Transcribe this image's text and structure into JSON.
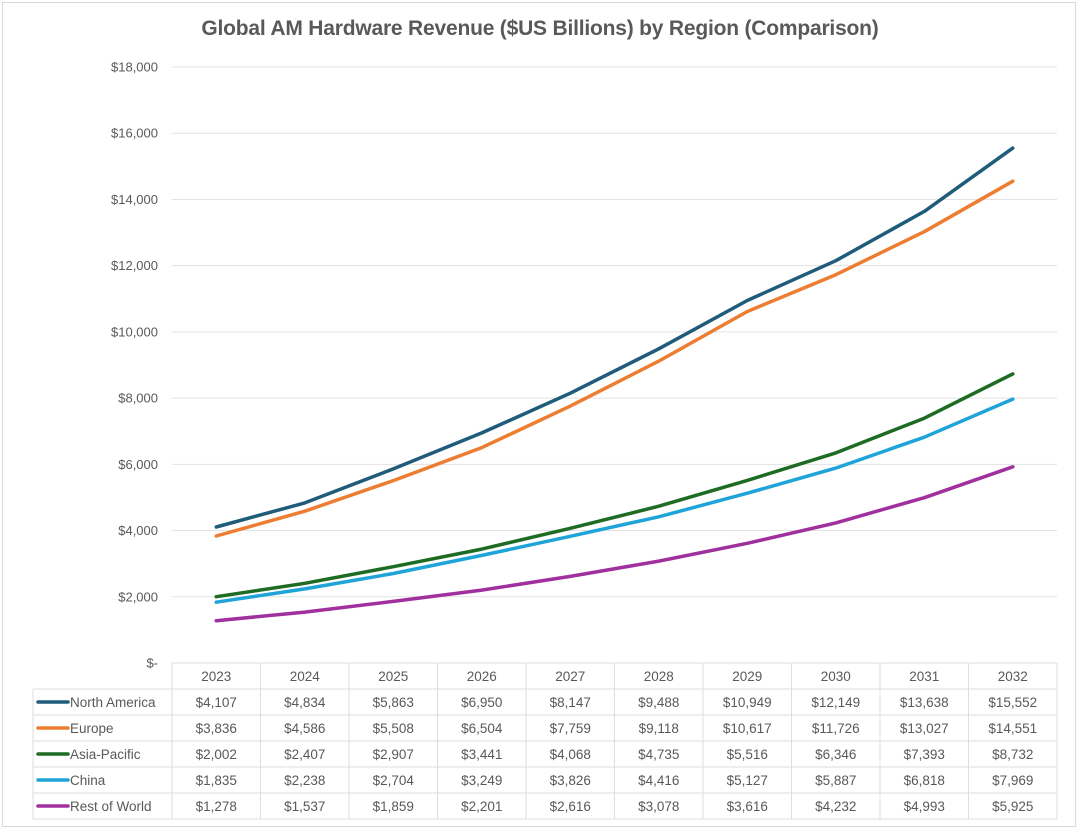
{
  "chart_data": {
    "type": "line",
    "title": "Global  AM Hardware Revenue ($US Billions) by Region (Comparison)",
    "xlabel": "",
    "ylabel": "",
    "ylim": [
      0,
      18000
    ],
    "yticks": [
      0,
      2000,
      4000,
      6000,
      8000,
      10000,
      12000,
      14000,
      16000,
      18000
    ],
    "ytick_labels": [
      "$-",
      "$2,000",
      "$4,000",
      "$6,000",
      "$8,000",
      "$10,000",
      "$12,000",
      "$14,000",
      "$16,000",
      "$18,000"
    ],
    "grid": true,
    "legend": "data-table",
    "categories": [
      "2023",
      "2024",
      "2025",
      "2026",
      "2027",
      "2028",
      "2029",
      "2030",
      "2031",
      "2032"
    ],
    "series": [
      {
        "name": "North America",
        "color": "#1f5c7a",
        "values": [
          4107,
          4834,
          5863,
          6950,
          8147,
          9488,
          10949,
          12149,
          13638,
          15552
        ],
        "labels": [
          "$4,107",
          "$4,834",
          "$5,863",
          "$6,950",
          "$8,147",
          "$9,488",
          "$10,949",
          "$12,149",
          "$13,638",
          "$15,552"
        ]
      },
      {
        "name": "Europe",
        "color": "#ed7d31",
        "values": [
          3836,
          4586,
          5508,
          6504,
          7759,
          9118,
          10617,
          11726,
          13027,
          14551
        ],
        "labels": [
          "$3,836",
          "$4,586",
          "$5,508",
          "$6,504",
          "$7,759",
          "$9,118",
          "$10,617",
          "$11,726",
          "$13,027",
          "$14,551"
        ]
      },
      {
        "name": "Asia-Pacific",
        "color": "#1e6b24",
        "values": [
          2002,
          2407,
          2907,
          3441,
          4068,
          4735,
          5516,
          6346,
          7393,
          8732
        ],
        "labels": [
          "$2,002",
          "$2,407",
          "$2,907",
          "$3,441",
          "$4,068",
          "$4,735",
          "$5,516",
          "$6,346",
          "$7,393",
          "$8,732"
        ]
      },
      {
        "name": "China",
        "color": "#1ea4d8",
        "values": [
          1835,
          2238,
          2704,
          3249,
          3826,
          4416,
          5127,
          5887,
          6818,
          7969
        ],
        "labels": [
          "$1,835",
          "$2,238",
          "$2,704",
          "$3,249",
          "$3,826",
          "$4,416",
          "$5,127",
          "$5,887",
          "$6,818",
          "$7,969"
        ]
      },
      {
        "name": "Rest of World",
        "color": "#a0309e",
        "values": [
          1278,
          1537,
          1859,
          2201,
          2616,
          3078,
          3616,
          4232,
          4993,
          5925
        ],
        "labels": [
          "$1,278",
          "$1,537",
          "$1,859",
          "$2,201",
          "$2,616",
          "$3,078",
          "$3,616",
          "$4,232",
          "$4,993",
          "$5,925"
        ]
      }
    ]
  }
}
